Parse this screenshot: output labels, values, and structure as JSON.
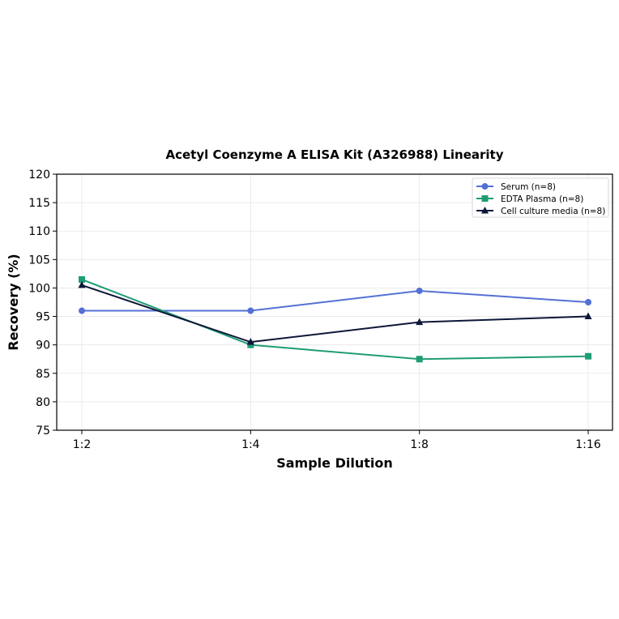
{
  "chart_data": {
    "type": "line",
    "title": "Acetyl Coenzyme A ELISA Kit (A326988) Linearity",
    "xlabel": "Sample Dilution",
    "ylabel": "Recovery (%)",
    "categories": [
      "1:2",
      "1:4",
      "1:8",
      "1:16"
    ],
    "ylim": [
      75,
      120
    ],
    "yticks": [
      75,
      80,
      85,
      90,
      95,
      100,
      105,
      110,
      115,
      120
    ],
    "grid": true,
    "legend_position": "top-right",
    "series": [
      {
        "name": "Serum (n=8)",
        "values": [
          96,
          96,
          99.5,
          97.5
        ],
        "color": "#5470d6",
        "marker": "circle"
      },
      {
        "name": "EDTA Plasma (n=8)",
        "values": [
          101.5,
          90,
          87.5,
          88
        ],
        "color": "#1e9c75",
        "marker": "square"
      },
      {
        "name": "Cell culture media (n=8)",
        "values": [
          100.5,
          90.5,
          94,
          95
        ],
        "color": "#0d1738",
        "marker": "triangle"
      }
    ]
  }
}
